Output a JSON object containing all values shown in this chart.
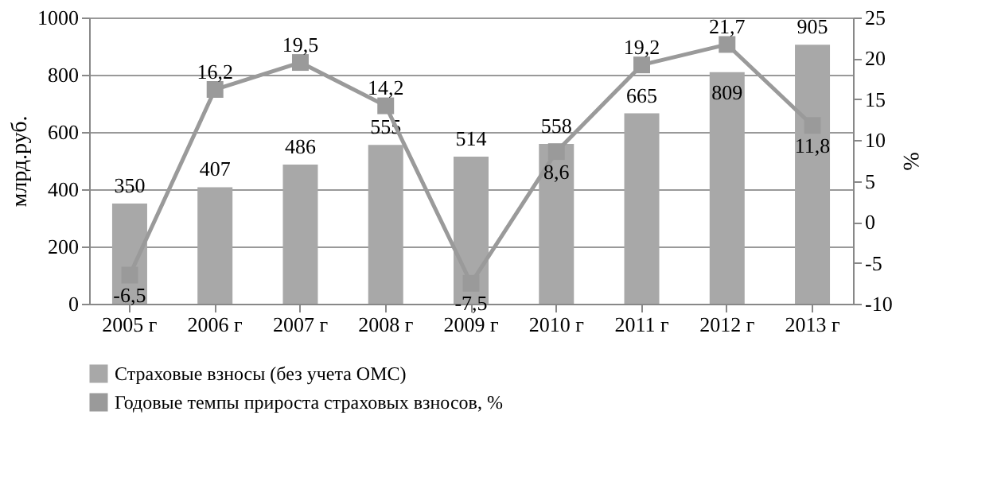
{
  "chart_data": {
    "type": "bar",
    "ylabel": "млрд.руб.",
    "y2label": "%",
    "categories": [
      "2005 г",
      "2006 г",
      "2007 г",
      "2008 г",
      "2009 г",
      "2010 г",
      "2011 г",
      "2012 г",
      "2013 г"
    ],
    "series": [
      {
        "name": "Страховые взносы (без учета ОМС)",
        "color": "#a8a8a8",
        "values": [
          350,
          407,
          486,
          555,
          514,
          558,
          665,
          809,
          905
        ]
      },
      {
        "name": "Годовые темпы прироста страховых взносов, %",
        "type": "line",
        "axis": "y2",
        "color": "#9a9a9a",
        "marker": "square",
        "values": [
          -6.5,
          16.2,
          19.5,
          14.2,
          -7.5,
          8.6,
          19.2,
          21.7,
          11.8
        ],
        "value_labels": [
          "-6,5",
          "16,2",
          "19,5",
          "14,2",
          "-7,5",
          "8,6",
          "19,2",
          "21,7",
          "11,8"
        ]
      }
    ],
    "ylim": [
      0,
      1000
    ],
    "yticks": [
      0,
      200,
      400,
      600,
      800,
      1000
    ],
    "y2lim": [
      -10,
      25
    ],
    "y2ticks": [
      -10,
      -5,
      0,
      5,
      10,
      15,
      20,
      25
    ],
    "grid": "y",
    "legend": "bottom",
    "data_labels": true
  }
}
